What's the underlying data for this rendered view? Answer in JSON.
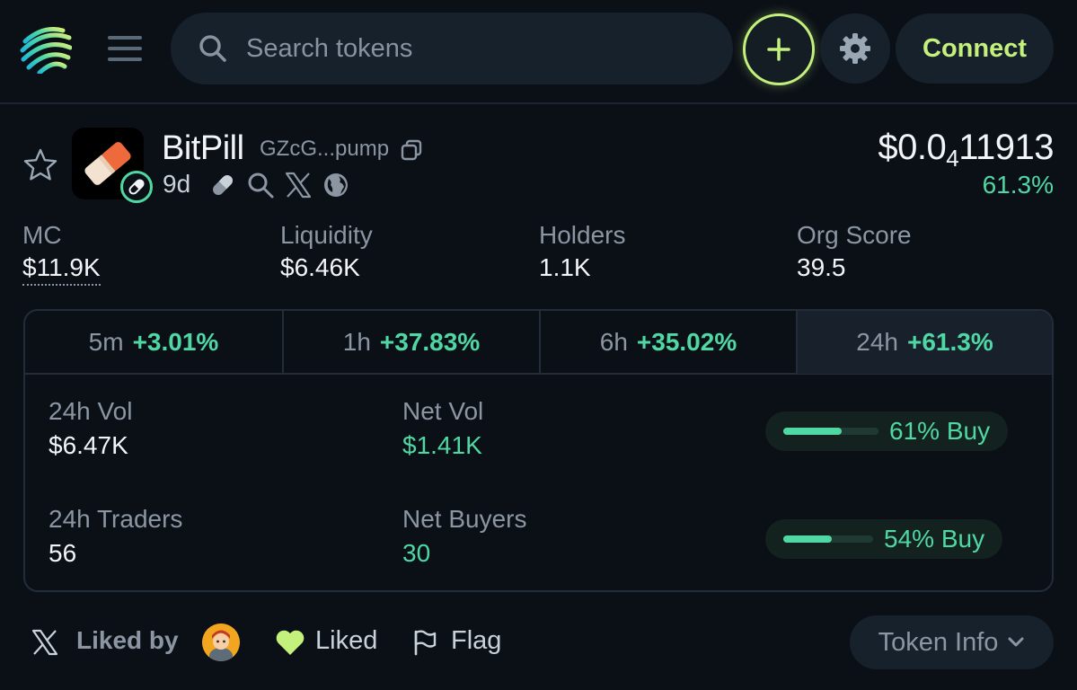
{
  "app": {
    "search_placeholder": "Search tokens",
    "connect_label": "Connect",
    "accent_color": "#c4f07c",
    "positive_color": "#4fd8a3"
  },
  "token": {
    "name": "BitPill",
    "address": "GZcG...pump",
    "age": "9d",
    "price_prefix": "$0.0",
    "price_zeros": "4",
    "price_digits": "11913",
    "price_change": "61.3%",
    "meta_icons": [
      "pill-icon",
      "search-icon",
      "x-icon",
      "globe-icon"
    ]
  },
  "stats": [
    {
      "label": "MC",
      "value": "$11.9K"
    },
    {
      "label": "Liquidity",
      "value": "$6.46K"
    },
    {
      "label": "Holders",
      "value": "1.1K"
    },
    {
      "label": "Org Score",
      "value": "39.5"
    }
  ],
  "periods": [
    {
      "period": "5m",
      "change": "+3.01%"
    },
    {
      "period": "1h",
      "change": "+37.83%"
    },
    {
      "period": "6h",
      "change": "+35.02%"
    },
    {
      "period": "24h",
      "change": "+61.3%",
      "active": true
    }
  ],
  "metrics": {
    "vol_label": "24h Vol",
    "vol_value": "$6.47K",
    "net_vol_label": "Net Vol",
    "net_vol_value": "$1.41K",
    "vol_buy_text": "61% Buy",
    "vol_buy_fraction": 0.61,
    "traders_label": "24h Traders",
    "traders_value": "56",
    "net_buyers_label": "Net Buyers",
    "net_buyers_value": "30",
    "traders_buy_text": "54% Buy",
    "traders_buy_fraction": 0.54
  },
  "footer": {
    "liked_by_label": "Liked by",
    "liked_label": "Liked",
    "flag_label": "Flag",
    "token_info_label": "Token Info"
  }
}
